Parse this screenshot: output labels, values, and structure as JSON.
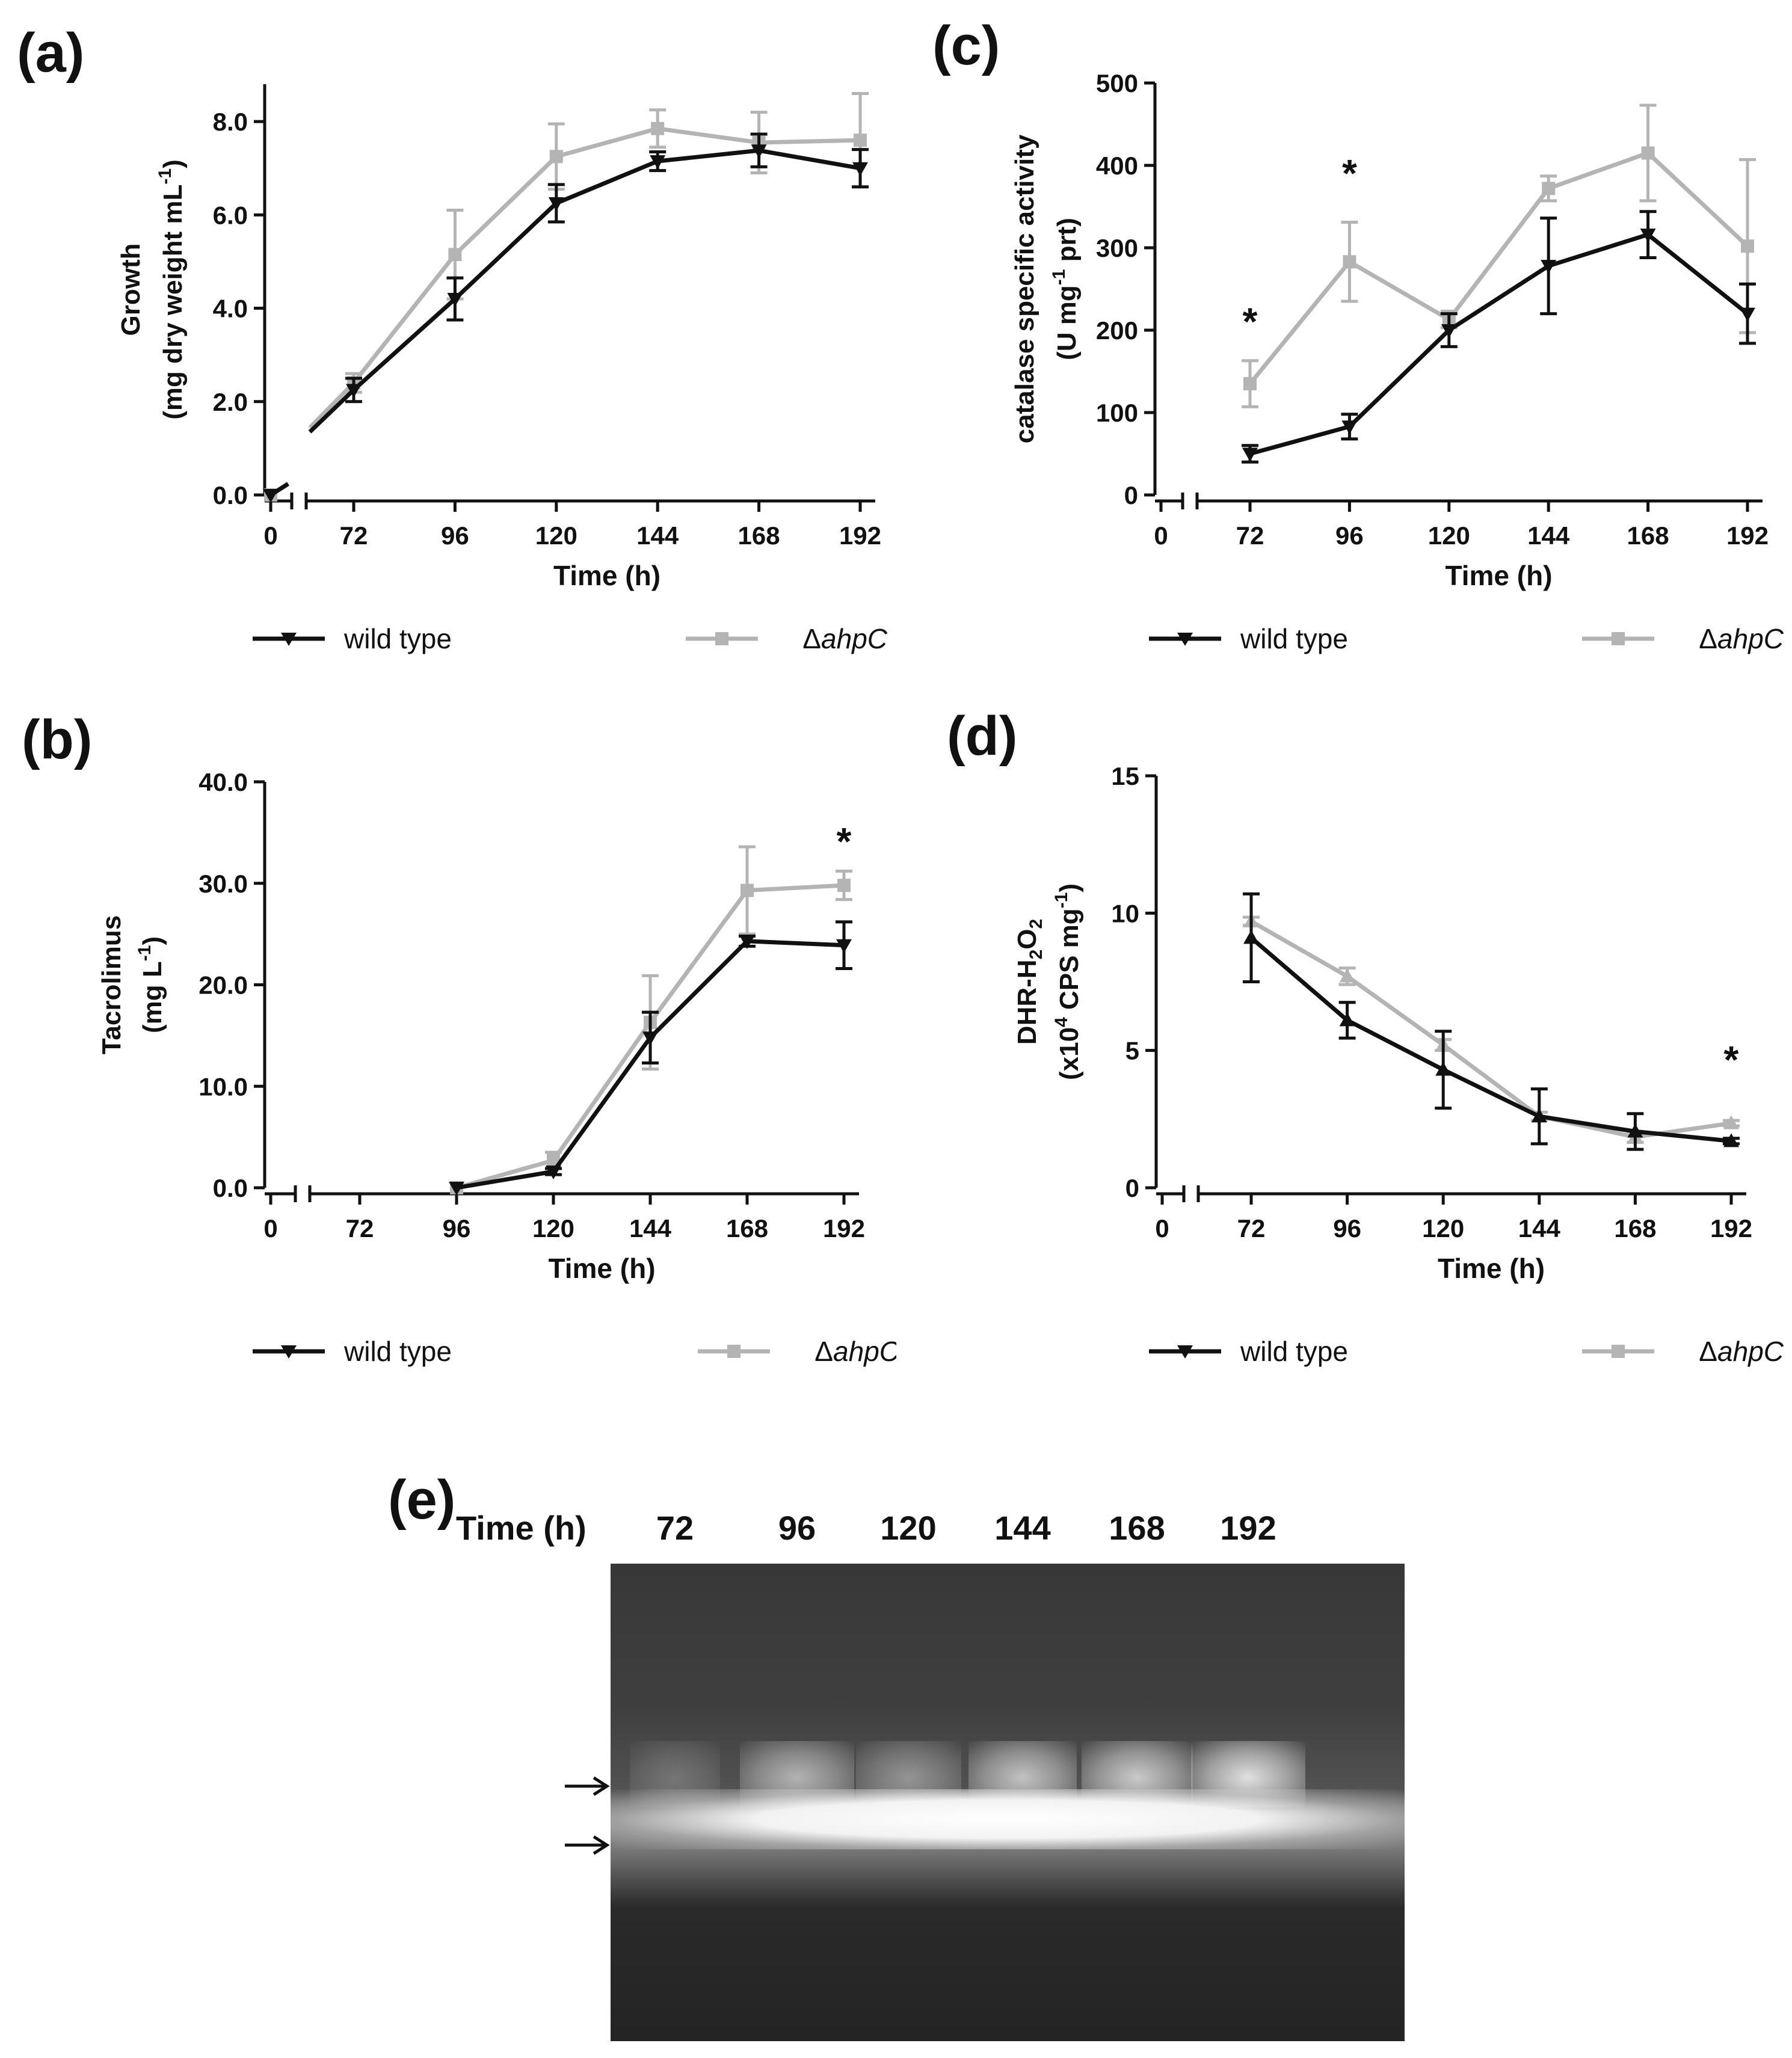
{
  "labels": {
    "a": "(a)",
    "b": "(b)",
    "c": "(c)",
    "d": "(d)",
    "e": "(e)"
  },
  "legend": {
    "wt": "wild type",
    "mut_delta": "Δ",
    "mut_italic": "ahpC"
  },
  "colors": {
    "wt": "#111111",
    "mut": "#b4b4b4"
  },
  "gel": {
    "time_label": "Time (h)",
    "lanes": [
      "72",
      "96",
      "120",
      "144",
      "168",
      "192"
    ],
    "upper_band_intensity": [
      0.25,
      0.65,
      0.45,
      0.75,
      0.8,
      0.95
    ]
  },
  "chart_data": [
    {
      "id": "a",
      "type": "line",
      "ylabel1": "Growth",
      "ylabel2": "(mg dry weight mL",
      "ylabel_sup": "-1",
      "ylabel2_end": ")",
      "xlabel": "Time (h)",
      "x_ticks": [
        0,
        72,
        96,
        120,
        144,
        168,
        192
      ],
      "ylim": [
        0,
        8.8
      ],
      "y_ticks": [
        0,
        2,
        4,
        6,
        8
      ],
      "y_tick_labels": [
        "0.0",
        "2.0",
        "4.0",
        "6.0",
        "8.0"
      ],
      "series": [
        {
          "name": "wild type",
          "marker": "triangle-down",
          "x": [
            0,
            72,
            96,
            120,
            144,
            168,
            192
          ],
          "y": [
            0,
            2.25,
            4.2,
            6.25,
            7.15,
            7.38,
            7.0
          ],
          "err": [
            0,
            0.25,
            0.45,
            0.4,
            0.2,
            0.35,
            0.4
          ]
        },
        {
          "name": "ΔahpC",
          "marker": "square",
          "x": [
            0,
            72,
            96,
            120,
            144,
            168,
            192
          ],
          "y": [
            0,
            2.4,
            5.15,
            7.25,
            7.85,
            7.55,
            7.6
          ],
          "err": [
            0,
            0.2,
            0.95,
            0.7,
            0.4,
            0.65,
            1.0
          ]
        }
      ],
      "annotations": []
    },
    {
      "id": "b",
      "type": "line",
      "ylabel1": "Tacrolimus",
      "ylabel2": "(mg L",
      "ylabel_sup": "-1",
      "ylabel2_end": ")",
      "xlabel": "Time (h)",
      "x_ticks": [
        0,
        72,
        96,
        120,
        144,
        168,
        192
      ],
      "ylim": [
        0,
        40
      ],
      "y_ticks": [
        0,
        10,
        20,
        30,
        40
      ],
      "y_tick_labels": [
        "0.0",
        "10.0",
        "20.0",
        "30.0",
        "40.0"
      ],
      "series": [
        {
          "name": "wild type",
          "marker": "triangle-down",
          "x": [
            96,
            120,
            144,
            168,
            192
          ],
          "y": [
            0,
            1.6,
            14.8,
            24.3,
            23.9
          ],
          "err": [
            0,
            0.3,
            2.5,
            0.5,
            2.3
          ]
        },
        {
          "name": "ΔahpC",
          "marker": "square",
          "x": [
            96,
            120,
            144,
            168,
            192
          ],
          "y": [
            0,
            2.7,
            16.3,
            29.3,
            29.8
          ],
          "err": [
            0,
            0.8,
            4.6,
            4.3,
            1.4
          ]
        }
      ],
      "annotations": [
        {
          "x": 192,
          "y": 34.5,
          "text": "*"
        }
      ]
    },
    {
      "id": "c",
      "type": "line",
      "ylabel1": "catalase specific activity",
      "ylabel2": "(U mg",
      "ylabel_sup": "-1",
      "ylabel2_end": " prt)",
      "xlabel": "Time (h)",
      "x_ticks": [
        0,
        72,
        96,
        120,
        144,
        168,
        192
      ],
      "ylim": [
        0,
        500
      ],
      "y_ticks": [
        0,
        100,
        200,
        300,
        400,
        500
      ],
      "y_tick_labels": [
        "0",
        "100",
        "200",
        "300",
        "400",
        "500"
      ],
      "series": [
        {
          "name": "wild type",
          "marker": "triangle-down",
          "x": [
            72,
            96,
            120,
            144,
            168,
            192
          ],
          "y": [
            50,
            83,
            200,
            278,
            316,
            220
          ],
          "err": [
            10,
            15,
            20,
            58,
            28,
            36
          ]
        },
        {
          "name": "ΔahpC",
          "marker": "square",
          "x": [
            72,
            96,
            120,
            144,
            168,
            192
          ],
          "y": [
            135,
            283,
            213,
            372,
            415,
            302
          ],
          "err": [
            28,
            48,
            10,
            15,
            58,
            105
          ]
        }
      ],
      "annotations": [
        {
          "x": 72,
          "y": 215,
          "text": "*"
        },
        {
          "x": 96,
          "y": 395,
          "text": "*"
        }
      ]
    },
    {
      "id": "d",
      "type": "line",
      "ylabel1": "DHR-H",
      "ylabel1_sub": "2",
      "ylabel1_mid": "O",
      "ylabel1_sub2": "2",
      "ylabel2": "(x10",
      "ylabel_sup": "4",
      "ylabel2_end": " CPS mg",
      "ylabel_sup2": "-1",
      "ylabel2_end2": ")",
      "xlabel": "Time (h)",
      "x_ticks": [
        0,
        72,
        96,
        120,
        144,
        168,
        192
      ],
      "ylim": [
        0,
        15
      ],
      "y_ticks": [
        0,
        5,
        10,
        15
      ],
      "y_tick_labels": [
        "0",
        "5",
        "10",
        "15"
      ],
      "series": [
        {
          "name": "wild type",
          "marker": "triangle-up",
          "x": [
            72,
            96,
            120,
            144,
            168,
            192
          ],
          "y": [
            9.1,
            6.1,
            4.3,
            2.6,
            2.05,
            1.7
          ],
          "err": [
            1.6,
            0.65,
            1.4,
            1.0,
            0.65,
            0.1
          ]
        },
        {
          "name": "ΔahpC",
          "marker": "triangle-up",
          "x": [
            72,
            96,
            120,
            144,
            168,
            192
          ],
          "y": [
            9.7,
            7.7,
            5.2,
            2.6,
            1.85,
            2.35
          ],
          "err": [
            0.15,
            0.3,
            0.2,
            0.15,
            0.2,
            0.1
          ]
        }
      ],
      "annotations": [
        {
          "x": 192,
          "y": 4.8,
          "text": "*"
        }
      ]
    }
  ]
}
